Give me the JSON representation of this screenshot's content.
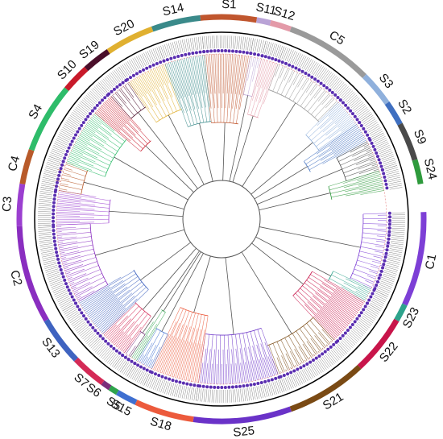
{
  "segments": [
    {
      "label": "S1",
      "color": "#c0562e"
    },
    {
      "label": "S11",
      "color": "#b9a3d6"
    },
    {
      "label": "S12",
      "color": "#e39aa8"
    },
    {
      "label": "C5",
      "color": "#9a9a9a"
    },
    {
      "label": "S3",
      "color": "#8fb0dc"
    },
    {
      "label": "S2",
      "color": "#3f6fc0"
    },
    {
      "label": "S9",
      "color": "#4a4a4a"
    },
    {
      "label": "S24",
      "color": "#2e9a3c"
    },
    {
      "label": "C1",
      "color": "#7d3fd6"
    },
    {
      "label": "S23",
      "color": "#2ea38c"
    },
    {
      "label": "S22",
      "color": "#c8154a"
    },
    {
      "label": "S21",
      "color": "#7a4a14"
    },
    {
      "label": "S25",
      "color": "#6a32c8"
    },
    {
      "label": "S18",
      "color": "#ec5a3c"
    },
    {
      "label": "S15",
      "color": "#3f6fd0"
    },
    {
      "label": "S5",
      "color": "#2ea34c"
    },
    {
      "label": "S6",
      "color": "#7a2e7a"
    },
    {
      "label": "S7",
      "color": "#d42a56"
    },
    {
      "label": "S13",
      "color": "#3f63c0"
    },
    {
      "label": "C2",
      "color": "#8a2ec0"
    },
    {
      "label": "C3",
      "color": "#9b3fd0"
    },
    {
      "label": "C4",
      "color": "#b85a2a"
    },
    {
      "label": "S4",
      "color": "#2ebc6a"
    },
    {
      "label": "S10",
      "color": "#c81a2a"
    },
    {
      "label": "S19",
      "color": "#4a0e2a"
    },
    {
      "label": "S20",
      "color": "#e0b030"
    },
    {
      "label": "S14",
      "color": "#3a8a8a"
    }
  ]
}
